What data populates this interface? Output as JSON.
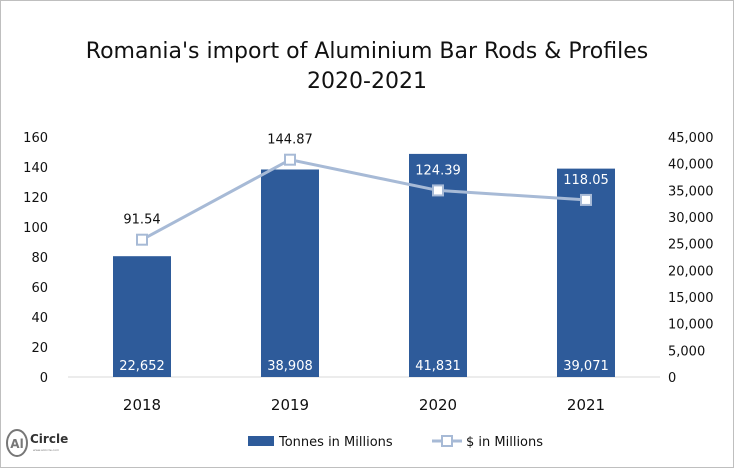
{
  "chart_data": {
    "type": "bar+line",
    "title": "Romania's import of Aluminium Bar Rods & Profiles",
    "subtitle": "2020-2021",
    "categories": [
      "2018",
      "2019",
      "2020",
      "2021"
    ],
    "left_axis": {
      "ylim": [
        0,
        160
      ],
      "ticks": [
        "0",
        "20",
        "40",
        "60",
        "80",
        "100",
        "120",
        "140",
        "160"
      ]
    },
    "right_axis": {
      "ylim": [
        0,
        45000
      ],
      "ticks": [
        "0",
        "5,000",
        "10,000",
        "15,000",
        "20,000",
        "25,000",
        "30,000",
        "35,000",
        "40,000",
        "45,000"
      ]
    },
    "series": [
      {
        "name": "Tonnes in Millions",
        "type": "bar",
        "axis": "right",
        "color": "#2e5b9a",
        "values": [
          22652,
          38908,
          41831,
          39071
        ],
        "labels": [
          "22,652",
          "38,908",
          "41,831",
          "39,071"
        ]
      },
      {
        "name": "$ in Millions",
        "type": "line",
        "axis": "left",
        "color": "#a7bad6",
        "values": [
          91.54,
          144.87,
          124.39,
          118.05
        ],
        "labels": [
          "91.54",
          "144.87",
          "124.39",
          "118.05"
        ]
      }
    ],
    "grid": false,
    "legend": "bottom"
  },
  "logo": {
    "text": "AlCircle"
  }
}
